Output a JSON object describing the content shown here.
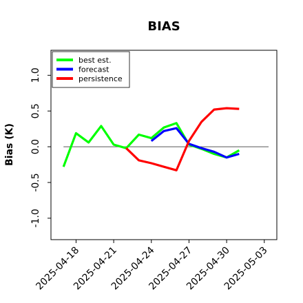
{
  "chart_data": {
    "type": "line",
    "title": "BIAS",
    "xlabel": "",
    "ylabel": "Bias (K)",
    "ylim": [
      -1.3,
      1.35
    ],
    "xlim": [
      "2025-04-16",
      "2025-05-04"
    ],
    "yticks": [
      -1.0,
      -0.5,
      0.0,
      0.5,
      1.0
    ],
    "ytick_labels": [
      "-1.0",
      "-0.5",
      "0.0",
      "0.5",
      "1.0"
    ],
    "xticks": [
      "2025-04-18",
      "2025-04-21",
      "2025-04-24",
      "2025-04-27",
      "2025-04-30",
      "2025-05-03"
    ],
    "highlight_tick": "2025-04-24",
    "highlight_color": "#228b22",
    "reference_line": 0,
    "legend_position": "upper-left",
    "grid": false,
    "series": [
      {
        "name": "best est.",
        "color": "#00ff00",
        "x": [
          "2025-04-17",
          "2025-04-18",
          "2025-04-19",
          "2025-04-20",
          "2025-04-21",
          "2025-04-22",
          "2025-04-23",
          "2025-04-24",
          "2025-04-25",
          "2025-04-26",
          "2025-04-27",
          "2025-04-28",
          "2025-04-29",
          "2025-04-30",
          "2025-05-01"
        ],
        "values": [
          -0.28,
          0.19,
          0.06,
          0.29,
          0.03,
          -0.02,
          0.17,
          0.12,
          0.27,
          0.33,
          0.03,
          -0.03,
          -0.1,
          -0.15,
          -0.05
        ]
      },
      {
        "name": "forecast",
        "color": "#0000ff",
        "x": [
          "2025-04-24",
          "2025-04-25",
          "2025-04-26",
          "2025-04-27",
          "2025-04-28",
          "2025-04-29",
          "2025-04-30",
          "2025-05-01"
        ],
        "values": [
          0.08,
          0.22,
          0.26,
          0.04,
          -0.02,
          -0.07,
          -0.15,
          -0.1
        ]
      },
      {
        "name": "persistence",
        "color": "#ff0000",
        "x": [
          "2025-04-22",
          "2025-04-23",
          "2025-04-24",
          "2025-04-25",
          "2025-04-26",
          "2025-04-27",
          "2025-04-28",
          "2025-04-29",
          "2025-04-30",
          "2025-05-01"
        ],
        "values": [
          -0.02,
          -0.19,
          -0.23,
          -0.28,
          -0.33,
          0.08,
          0.35,
          0.52,
          0.54,
          0.53
        ]
      }
    ]
  }
}
